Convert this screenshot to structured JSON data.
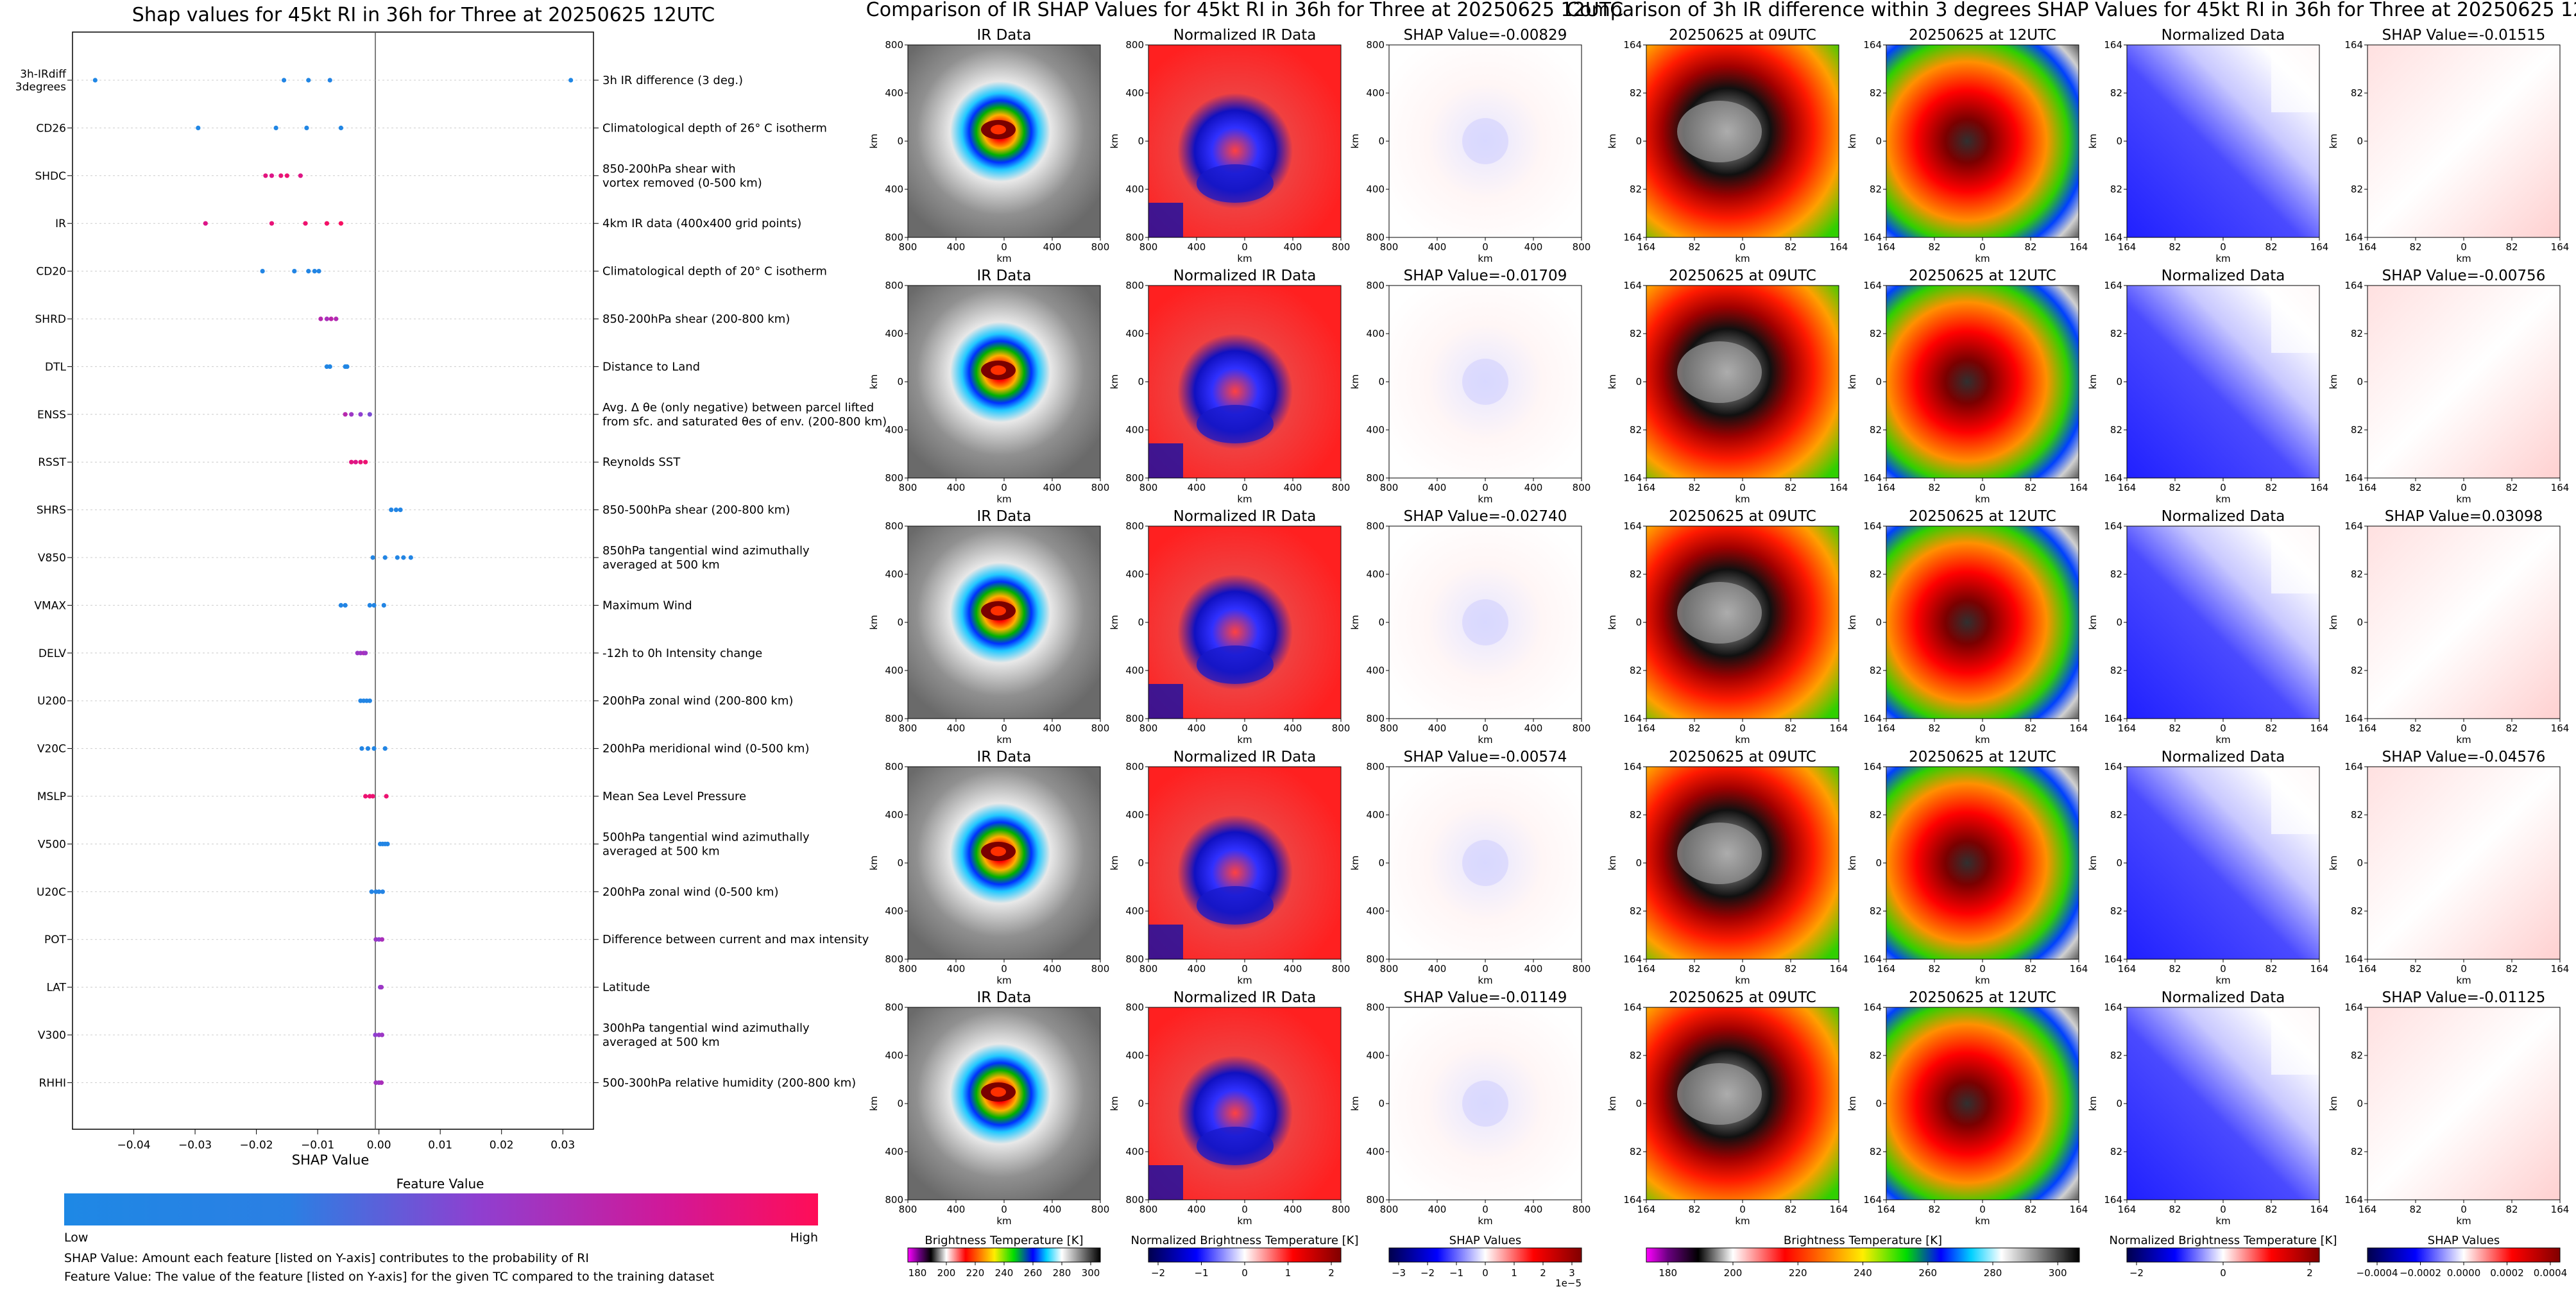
{
  "titles": {
    "shap": "Shap values for 45kt RI in 36h for Three at 20250625 12UTC",
    "ir": "Comparison of IR SHAP Values for 45kt RI in 36h for Three at 20250625 12UTC",
    "diff": "Comparison of 3h IR difference within 3 degrees SHAP Values for 45kt RI in 36h for Three at 20250625 12UTC"
  },
  "shap_plot": {
    "xlabel": "SHAP Value",
    "xticks": [
      "−0.04",
      "−0.03",
      "−0.02",
      "−0.01",
      "0.00",
      "0.01",
      "0.02",
      "0.03"
    ],
    "colorbar_title": "Feature Value",
    "colorbar_low": "Low",
    "colorbar_high": "High",
    "note1": "SHAP Value: Amount each feature [listed on Y-axis] contributes to the probability of RI",
    "note2": "Feature Value: The value of the feature [listed on Y-axis] for the given TC compared to the training dataset",
    "colors": {
      "low": "#1e88e5",
      "high": "#ff0d57"
    }
  },
  "panels": {
    "ir_data": "IR Data",
    "norm_ir_data": "Normalized IR Data",
    "date1": "20250625 at 09UTC",
    "date2": "20250625 at 12UTC",
    "norm_data": "Normalized Data",
    "axis_km": "km",
    "ir_ticks": [
      "800",
      "400",
      "0",
      "400",
      "800"
    ],
    "diff_ticks": [
      "164",
      "82",
      "0",
      "82",
      "164"
    ],
    "ir_shap_titles": [
      "SHAP Value=-0.00829",
      "SHAP Value=-0.01709",
      "SHAP Value=-0.02740",
      "SHAP Value=-0.00574",
      "SHAP Value=-0.01149"
    ],
    "diff_shap_titles": [
      "SHAP Value=-0.01515",
      "SHAP Value=-0.00756",
      "SHAP Value=0.03098",
      "SHAP Value=-0.04576",
      "SHAP Value=-0.01125"
    ]
  },
  "colorbars": {
    "bt_label": "Brightness Temperature [K]",
    "bt_ticks": [
      "180",
      "200",
      "220",
      "240",
      "260",
      "280",
      "300"
    ],
    "bt_ticks2": [
      "180",
      "200",
      "220",
      "240",
      "260",
      "280",
      "300"
    ],
    "nbt_label": "Normalized Brightness Temperature [K]",
    "nbt_ticks": [
      "−2",
      "−1",
      "0",
      "1",
      "2"
    ],
    "nbt_ticks2": [
      "−2",
      "0",
      "2"
    ],
    "shap_label": "SHAP Values",
    "shap_ticks": [
      "−3",
      "−2",
      "−1",
      "0",
      "1",
      "2",
      "3"
    ],
    "shap_exp": "1e−5",
    "shap_ticks2": [
      "−0.0004",
      "−0.0002",
      "0.0000",
      "0.0002",
      "0.0004"
    ]
  },
  "chart_data": {
    "type": "scatter",
    "title": "Shap values for 45kt RI in 36h for Three at 20250625 12UTC",
    "xlabel": "SHAP Value",
    "xlim": [
      -0.05,
      0.035
    ],
    "features": [
      {
        "name": "3h-IRdiff\n3degrees",
        "desc": "3h IR difference (3 deg.)",
        "points": [
          [
            -0.0463,
            0.05
          ],
          [
            -0.0155,
            0.1
          ],
          [
            -0.0115,
            0.08
          ],
          [
            -0.008,
            0.12
          ],
          [
            0.0313,
            0.05
          ]
        ]
      },
      {
        "name": "CD26",
        "desc": "Climatological depth of 26° C isotherm",
        "points": [
          [
            -0.0295,
            0.05
          ],
          [
            -0.0168,
            0.08
          ],
          [
            -0.0118,
            0.08
          ],
          [
            -0.0062,
            0.08
          ]
        ]
      },
      {
        "name": "SHDC",
        "desc": "850-200hPa shear with\nvortex removed (0-500 km)",
        "points": [
          [
            -0.0185,
            0.88
          ],
          [
            -0.0175,
            0.85
          ],
          [
            -0.016,
            0.9
          ],
          [
            -0.015,
            0.92
          ],
          [
            -0.0128,
            0.86
          ]
        ]
      },
      {
        "name": "IR",
        "desc": "4km IR data (400x400 grid points)",
        "points": [
          [
            -0.0283,
            0.85
          ],
          [
            -0.0175,
            0.9
          ],
          [
            -0.012,
            0.93
          ],
          [
            -0.0085,
            0.95
          ],
          [
            -0.0062,
            0.97
          ]
        ]
      },
      {
        "name": "CD20",
        "desc": "Climatological depth of 20° C isotherm",
        "points": [
          [
            -0.019,
            0.1
          ],
          [
            -0.0138,
            0.1
          ],
          [
            -0.0115,
            0.1
          ],
          [
            -0.0105,
            0.1
          ],
          [
            -0.0098,
            0.1
          ]
        ]
      },
      {
        "name": "SHRD",
        "desc": "850-200hPa shear (200-800 km)",
        "points": [
          [
            -0.0095,
            0.7
          ],
          [
            -0.0085,
            0.65
          ],
          [
            -0.0078,
            0.72
          ],
          [
            -0.007,
            0.68
          ]
        ]
      },
      {
        "name": "DTL",
        "desc": "Distance to Land",
        "points": [
          [
            -0.0085,
            0.08
          ],
          [
            -0.008,
            0.08
          ],
          [
            -0.0055,
            0.08
          ],
          [
            -0.0052,
            0.08
          ]
        ]
      },
      {
        "name": "ENSS",
        "desc": "Avg. Δ θe (only negative) between parcel lifted\nfrom sfc. and saturated θes of env. (200-800 km)",
        "points": [
          [
            -0.0055,
            0.7
          ],
          [
            -0.0045,
            0.6
          ],
          [
            -0.003,
            0.55
          ],
          [
            -0.0015,
            0.5
          ]
        ]
      },
      {
        "name": "RSST",
        "desc": "Reynolds SST",
        "points": [
          [
            -0.0045,
            0.88
          ],
          [
            -0.0038,
            0.85
          ],
          [
            -0.003,
            0.9
          ],
          [
            -0.0022,
            0.92
          ]
        ]
      },
      {
        "name": "SHRS",
        "desc": "850-500hPa shear (200-800 km)",
        "points": [
          [
            0.002,
            0.1
          ],
          [
            0.0028,
            0.1
          ],
          [
            0.0035,
            0.1
          ]
        ]
      },
      {
        "name": "V850",
        "desc": "850hPa tangential wind azimuthally\naveraged at 500 km",
        "points": [
          [
            -0.001,
            0.1
          ],
          [
            0.001,
            0.1
          ],
          [
            0.003,
            0.1
          ],
          [
            0.004,
            0.1
          ],
          [
            0.0052,
            0.1
          ]
        ]
      },
      {
        "name": "VMAX",
        "desc": "Maximum Wind",
        "points": [
          [
            -0.0062,
            0.1
          ],
          [
            -0.0055,
            0.1
          ],
          [
            -0.0015,
            0.1
          ],
          [
            -0.0008,
            0.1
          ],
          [
            0.0008,
            0.1
          ]
        ]
      },
      {
        "name": "DELV",
        "desc": "-12h to 0h Intensity change",
        "points": [
          [
            -0.0035,
            0.6
          ],
          [
            -0.003,
            0.6
          ],
          [
            -0.0025,
            0.65
          ],
          [
            -0.0022,
            0.6
          ]
        ]
      },
      {
        "name": "U200",
        "desc": "200hPa zonal wind (200-800 km)",
        "points": [
          [
            -0.003,
            0.1
          ],
          [
            -0.0025,
            0.1
          ],
          [
            -0.002,
            0.1
          ],
          [
            -0.0015,
            0.1
          ]
        ]
      },
      {
        "name": "V20C",
        "desc": "200hPa meridional wind (0-500 km)",
        "points": [
          [
            -0.0028,
            0.1
          ],
          [
            -0.0018,
            0.1
          ],
          [
            -0.0008,
            0.1
          ],
          [
            0.001,
            0.1
          ]
        ]
      },
      {
        "name": "MSLP",
        "desc": "Mean Sea Level Pressure",
        "points": [
          [
            -0.0022,
            0.92
          ],
          [
            -0.0015,
            0.92
          ],
          [
            -0.001,
            0.92
          ],
          [
            0.0012,
            0.92
          ]
        ]
      },
      {
        "name": "V500",
        "desc": "500hPa tangential wind azimuthally\naveraged at 500 km",
        "points": [
          [
            0.0002,
            0.1
          ],
          [
            0.0006,
            0.1
          ],
          [
            0.001,
            0.1
          ],
          [
            0.0014,
            0.1
          ]
        ]
      },
      {
        "name": "U20C",
        "desc": "200hPa zonal wind (0-500 km)",
        "points": [
          [
            -0.0012,
            0.15
          ],
          [
            -0.0005,
            0.15
          ],
          [
            0.0,
            0.15
          ],
          [
            0.0006,
            0.15
          ]
        ]
      },
      {
        "name": "POT",
        "desc": "Difference between current and max intensity",
        "points": [
          [
            -0.0005,
            0.6
          ],
          [
            0.0,
            0.55
          ],
          [
            0.0005,
            0.65
          ]
        ]
      },
      {
        "name": "LAT",
        "desc": "Latitude",
        "points": [
          [
            0.0002,
            0.55
          ],
          [
            0.0004,
            0.6
          ]
        ]
      },
      {
        "name": "V300",
        "desc": "300hPa tangential wind azimuthally\naveraged at 500 km",
        "points": [
          [
            -0.0006,
            0.55
          ],
          [
            0.0,
            0.58
          ],
          [
            0.0005,
            0.6
          ]
        ]
      },
      {
        "name": "RHHI",
        "desc": "500-300hPa relative humidity (200-800 km)",
        "points": [
          [
            -0.0005,
            0.62
          ],
          [
            0.0,
            0.6
          ],
          [
            0.0004,
            0.65
          ]
        ]
      }
    ]
  }
}
